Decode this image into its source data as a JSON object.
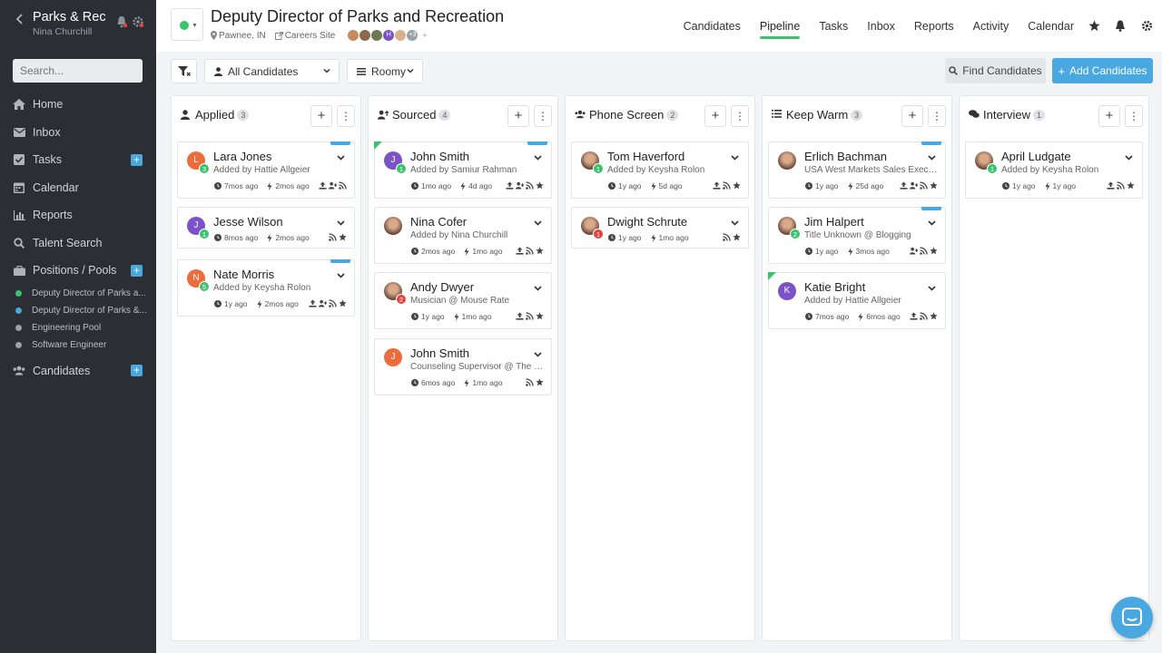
{
  "sidebar": {
    "org": "Parks & Rec",
    "user": "Nina Churchill",
    "search_placeholder": "Search...",
    "nav": [
      "Home",
      "Inbox",
      "Tasks",
      "Calendar",
      "Reports",
      "Talent Search",
      "Positions / Pools"
    ],
    "positions": [
      {
        "label": "Deputy Director of Parks a...",
        "color": "#3cc26e"
      },
      {
        "label": "Deputy Director of Parks &...",
        "color": "#4aa8e0"
      },
      {
        "label": "Engineering Pool",
        "color": "#9aa1a8"
      },
      {
        "label": "Software Engineer",
        "color": "#9aa1a8"
      }
    ],
    "candidates": "Candidates"
  },
  "header": {
    "title": "Deputy Director of Parks and Recreation",
    "location": "Pawnee, IN",
    "careers": "Careers Site",
    "team_more": "+3",
    "team_add": "+",
    "nav": [
      "Candidates",
      "Pipeline",
      "Tasks",
      "Inbox",
      "Reports",
      "Activity",
      "Calendar"
    ],
    "active_nav": "Pipeline"
  },
  "toolbar": {
    "candidates_filter": "All Candidates",
    "view": "Roomy",
    "find": "Find Candidates",
    "add": "Add Candidates"
  },
  "columns": [
    {
      "title": "Applied",
      "count": "3",
      "icon": "user-icon",
      "add": "+",
      "more": "⋮"
    },
    {
      "title": "Sourced",
      "count": "4",
      "icon": "user-upload-icon",
      "add": "+",
      "more": "⋮"
    },
    {
      "title": "Phone Screen",
      "count": "2",
      "icon": "users-icon",
      "add": "+",
      "more": "⋮"
    },
    {
      "title": "Keep Warm",
      "count": "3",
      "icon": "list-icon",
      "add": "+",
      "more": "⋮"
    },
    {
      "title": "Interview",
      "count": "1",
      "icon": "comments-icon",
      "add": "+",
      "more": "⋮"
    }
  ],
  "cards": [
    [
      {
        "name": "Lara Jones",
        "sub": "Added by Hattie Allgeier",
        "t1": "7mos ago",
        "t2": "2mos ago",
        "initial": "L",
        "badge": "3"
      },
      {
        "name": "Jesse Wilson",
        "sub": "",
        "t1": "8mos ago",
        "t2": "2mos ago",
        "initial": "J",
        "badge": "1"
      },
      {
        "name": "Nate Morris",
        "sub": "Added by Keysha Rolon",
        "t1": "1y ago",
        "t2": "2mos ago",
        "initial": "N",
        "badge": "5"
      }
    ],
    [
      {
        "name": "John Smith",
        "sub": "Added by Samiur Rahman",
        "t1": "1mo ago",
        "t2": "4d ago",
        "initial": "J",
        "badge": "1"
      },
      {
        "name": "Nina Cofer",
        "sub": "Added by Nina Churchill",
        "t1": "2mos ago",
        "t2": "1mo ago",
        "initial": "",
        "badge": ""
      },
      {
        "name": "Andy Dwyer",
        "sub": "Musician @ Mouse Rate",
        "t1": "1y ago",
        "t2": "1mo ago",
        "initial": "",
        "badge": "2"
      },
      {
        "name": "John Smith",
        "sub": "Counseling Supervisor @ The We...",
        "t1": "6mos ago",
        "t2": "1mo ago",
        "initial": "J",
        "badge": ""
      }
    ],
    [
      {
        "name": "Tom Haverford",
        "sub": "Added by Keysha Rolon",
        "t1": "1y ago",
        "t2": "5d ago",
        "initial": "",
        "badge": "1"
      },
      {
        "name": "Dwight Schrute",
        "sub": "",
        "t1": "1y ago",
        "t2": "1mo ago",
        "initial": "",
        "badge": "1"
      }
    ],
    [
      {
        "name": "Erlich Bachman",
        "sub": "USA West Markets Sales Executiv...",
        "t1": "1y ago",
        "t2": "25d ago",
        "initial": "",
        "badge": ""
      },
      {
        "name": "Jim Halpert",
        "sub": "Title Unknown @ Blogging",
        "t1": "1y ago",
        "t2": "3mos ago",
        "initial": "",
        "badge": "2"
      },
      {
        "name": "Katie Bright",
        "sub": "Added by Hattie Allgeier",
        "t1": "7mos ago",
        "t2": "6mos ago",
        "initial": "K",
        "badge": ""
      }
    ],
    [
      {
        "name": "April Ludgate",
        "sub": "Added by Keysha Rolon",
        "t1": "1y ago",
        "t2": "1y ago",
        "initial": "",
        "badge": "1"
      }
    ]
  ],
  "colors": {
    "green": "#3cc26e",
    "blue": "#4aa8e0",
    "orange": "#ee6b3b",
    "purple": "#7b52c7",
    "red": "#e2433d"
  }
}
